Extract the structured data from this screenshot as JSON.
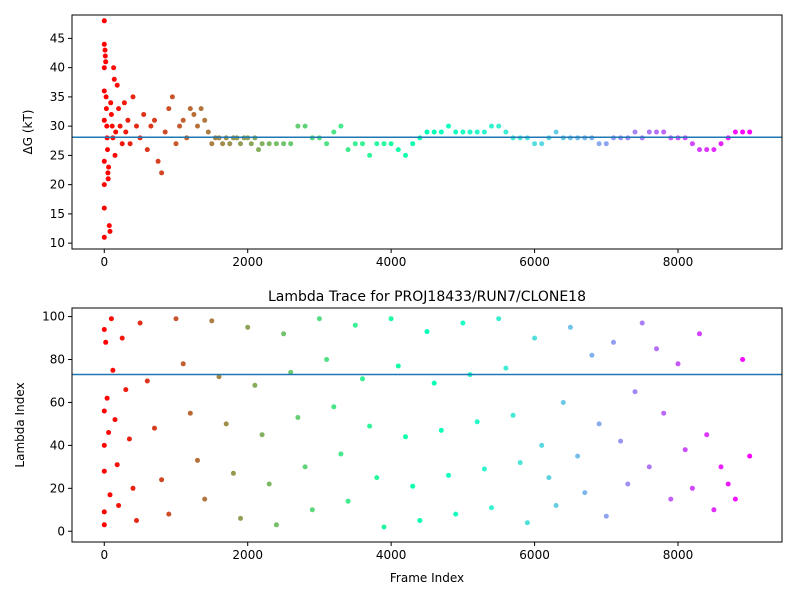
{
  "chart_data": [
    {
      "type": "scatter",
      "title": "",
      "xlabel": "",
      "ylabel": "ΔG (kT)",
      "xlim": [
        -450,
        9450
      ],
      "ylim": [
        9,
        49
      ],
      "xticks": [
        0,
        2000,
        4000,
        6000,
        8000
      ],
      "yticks": [
        10,
        15,
        20,
        25,
        30,
        35,
        40,
        45
      ],
      "hline": 28.1,
      "hline_color": "#1f77b4",
      "colormap": "rainbow",
      "grid": false,
      "series": [
        {
          "points": [
            [
              0,
              48
            ],
            [
              0,
              11
            ],
            [
              0,
              16
            ],
            [
              0,
              20
            ],
            [
              0,
              24
            ],
            [
              0,
              31
            ],
            [
              0,
              36
            ],
            [
              0,
              40
            ],
            [
              0,
              44
            ],
            [
              10,
              43
            ],
            [
              15,
              42
            ],
            [
              20,
              41
            ],
            [
              25,
              35
            ],
            [
              30,
              33
            ],
            [
              35,
              30
            ],
            [
              40,
              28
            ],
            [
              45,
              26
            ],
            [
              50,
              22
            ],
            [
              55,
              21
            ],
            [
              60,
              23
            ],
            [
              70,
              13
            ],
            [
              80,
              12
            ],
            [
              90,
              34
            ],
            [
              100,
              32
            ],
            [
              110,
              30
            ],
            [
              120,
              28
            ],
            [
              130,
              40
            ],
            [
              140,
              38
            ],
            [
              150,
              25
            ],
            [
              160,
              29
            ],
            [
              180,
              37
            ],
            [
              200,
              33
            ],
            [
              220,
              30
            ],
            [
              250,
              27
            ],
            [
              280,
              34
            ],
            [
              300,
              29
            ],
            [
              330,
              31
            ],
            [
              360,
              27
            ],
            [
              400,
              35
            ],
            [
              450,
              30
            ],
            [
              500,
              28
            ],
            [
              550,
              32
            ],
            [
              600,
              26
            ],
            [
              650,
              30
            ],
            [
              700,
              31
            ],
            [
              750,
              24
            ],
            [
              800,
              22
            ],
            [
              850,
              29
            ],
            [
              900,
              33
            ],
            [
              950,
              35
            ],
            [
              1000,
              27
            ],
            [
              1050,
              30
            ],
            [
              1100,
              31
            ],
            [
              1150,
              28
            ],
            [
              1200,
              33
            ],
            [
              1250,
              32
            ],
            [
              1300,
              30
            ],
            [
              1350,
              33
            ],
            [
              1400,
              31
            ],
            [
              1450,
              29
            ],
            [
              1500,
              27
            ],
            [
              1550,
              28
            ],
            [
              1600,
              28
            ],
            [
              1650,
              27
            ],
            [
              1700,
              28
            ],
            [
              1750,
              27
            ],
            [
              1800,
              28
            ],
            [
              1850,
              28
            ],
            [
              1900,
              27
            ],
            [
              1950,
              28
            ],
            [
              2000,
              28
            ],
            [
              2050,
              27
            ],
            [
              2100,
              28
            ],
            [
              2150,
              26
            ],
            [
              2200,
              27
            ],
            [
              2300,
              27
            ],
            [
              2400,
              27
            ],
            [
              2500,
              27
            ],
            [
              2600,
              27
            ],
            [
              2700,
              30
            ],
            [
              2800,
              30
            ],
            [
              2900,
              28
            ],
            [
              3000,
              28
            ],
            [
              3100,
              27
            ],
            [
              3200,
              29
            ],
            [
              3300,
              30
            ],
            [
              3400,
              26
            ],
            [
              3500,
              27
            ],
            [
              3600,
              27
            ],
            [
              3700,
              25
            ],
            [
              3800,
              27
            ],
            [
              3900,
              27
            ],
            [
              4000,
              27
            ],
            [
              4100,
              26
            ],
            [
              4200,
              25
            ],
            [
              4300,
              27
            ],
            [
              4400,
              28
            ],
            [
              4500,
              29
            ],
            [
              4600,
              29
            ],
            [
              4700,
              29
            ],
            [
              4800,
              30
            ],
            [
              4900,
              29
            ],
            [
              5000,
              29
            ],
            [
              5100,
              29
            ],
            [
              5200,
              29
            ],
            [
              5300,
              29
            ],
            [
              5400,
              30
            ],
            [
              5500,
              30
            ],
            [
              5600,
              29
            ],
            [
              5700,
              28
            ],
            [
              5800,
              28
            ],
            [
              5900,
              28
            ],
            [
              6000,
              27
            ],
            [
              6100,
              27
            ],
            [
              6200,
              28
            ],
            [
              6300,
              29
            ],
            [
              6400,
              28
            ],
            [
              6500,
              28
            ],
            [
              6600,
              28
            ],
            [
              6700,
              28
            ],
            [
              6800,
              28
            ],
            [
              6900,
              27
            ],
            [
              7000,
              27
            ],
            [
              7100,
              28
            ],
            [
              7200,
              28
            ],
            [
              7300,
              28
            ],
            [
              7400,
              29
            ],
            [
              7500,
              28
            ],
            [
              7600,
              29
            ],
            [
              7700,
              29
            ],
            [
              7800,
              29
            ],
            [
              7900,
              28
            ],
            [
              8000,
              28
            ],
            [
              8100,
              28
            ],
            [
              8200,
              27
            ],
            [
              8300,
              26
            ],
            [
              8400,
              26
            ],
            [
              8500,
              26
            ],
            [
              8600,
              27
            ],
            [
              8700,
              28
            ],
            [
              8800,
              29
            ],
            [
              8900,
              29
            ],
            [
              9000,
              29
            ]
          ]
        }
      ]
    },
    {
      "type": "scatter",
      "title": "Lambda Trace for PROJ18433/RUN7/CLONE18",
      "xlabel": "Frame Index",
      "ylabel": "Lambda Index",
      "xlim": [
        -450,
        9450
      ],
      "ylim": [
        -5,
        104
      ],
      "xticks": [
        0,
        2000,
        4000,
        6000,
        8000
      ],
      "yticks": [
        0,
        20,
        40,
        60,
        80,
        100
      ],
      "hline": 73,
      "hline_color": "#1f77b4",
      "colormap": "rainbow",
      "grid": false,
      "series": [
        {
          "points": [
            [
              0,
              94
            ],
            [
              0,
              56
            ],
            [
              0,
              40
            ],
            [
              0,
              28
            ],
            [
              0,
              9
            ],
            [
              0,
              3
            ],
            [
              20,
              88
            ],
            [
              40,
              62
            ],
            [
              60,
              46
            ],
            [
              80,
              17
            ],
            [
              100,
              99
            ],
            [
              120,
              75
            ],
            [
              150,
              52
            ],
            [
              180,
              31
            ],
            [
              200,
              12
            ],
            [
              250,
              90
            ],
            [
              300,
              66
            ],
            [
              350,
              43
            ],
            [
              400,
              20
            ],
            [
              450,
              5
            ],
            [
              500,
              97
            ],
            [
              600,
              70
            ],
            [
              700,
              48
            ],
            [
              800,
              24
            ],
            [
              900,
              8
            ],
            [
              1000,
              99
            ],
            [
              1100,
              78
            ],
            [
              1200,
              55
            ],
            [
              1300,
              33
            ],
            [
              1400,
              15
            ],
            [
              1500,
              98
            ],
            [
              1600,
              72
            ],
            [
              1700,
              50
            ],
            [
              1800,
              27
            ],
            [
              1900,
              6
            ],
            [
              2000,
              95
            ],
            [
              2100,
              68
            ],
            [
              2200,
              45
            ],
            [
              2300,
              22
            ],
            [
              2400,
              3
            ],
            [
              2500,
              92
            ],
            [
              2600,
              74
            ],
            [
              2700,
              53
            ],
            [
              2800,
              30
            ],
            [
              2900,
              10
            ],
            [
              3000,
              99
            ],
            [
              3100,
              80
            ],
            [
              3200,
              58
            ],
            [
              3300,
              36
            ],
            [
              3400,
              14
            ],
            [
              3500,
              96
            ],
            [
              3600,
              71
            ],
            [
              3700,
              49
            ],
            [
              3800,
              25
            ],
            [
              3900,
              2
            ],
            [
              4000,
              99
            ],
            [
              4100,
              77
            ],
            [
              4200,
              44
            ],
            [
              4300,
              21
            ],
            [
              4400,
              5
            ],
            [
              4500,
              93
            ],
            [
              4600,
              69
            ],
            [
              4700,
              47
            ],
            [
              4800,
              26
            ],
            [
              4900,
              8
            ],
            [
              5000,
              97
            ],
            [
              5100,
              73
            ],
            [
              5200,
              51
            ],
            [
              5300,
              29
            ],
            [
              5400,
              11
            ],
            [
              5500,
              99
            ],
            [
              5600,
              76
            ],
            [
              5700,
              54
            ],
            [
              5800,
              32
            ],
            [
              5900,
              4
            ],
            [
              6000,
              90
            ],
            [
              6100,
              40
            ],
            [
              6200,
              25
            ],
            [
              6300,
              12
            ],
            [
              6400,
              60
            ],
            [
              6500,
              95
            ],
            [
              6600,
              35
            ],
            [
              6700,
              18
            ],
            [
              6800,
              82
            ],
            [
              6900,
              50
            ],
            [
              7000,
              7
            ],
            [
              7100,
              88
            ],
            [
              7200,
              42
            ],
            [
              7300,
              22
            ],
            [
              7400,
              65
            ],
            [
              7500,
              97
            ],
            [
              7600,
              30
            ],
            [
              7700,
              85
            ],
            [
              7800,
              55
            ],
            [
              7900,
              15
            ],
            [
              8000,
              78
            ],
            [
              8100,
              38
            ],
            [
              8200,
              20
            ],
            [
              8300,
              92
            ],
            [
              8400,
              45
            ],
            [
              8500,
              10
            ],
            [
              8600,
              30
            ],
            [
              8700,
              22
            ],
            [
              8800,
              15
            ],
            [
              8900,
              80
            ],
            [
              9000,
              35
            ]
          ]
        }
      ]
    }
  ]
}
